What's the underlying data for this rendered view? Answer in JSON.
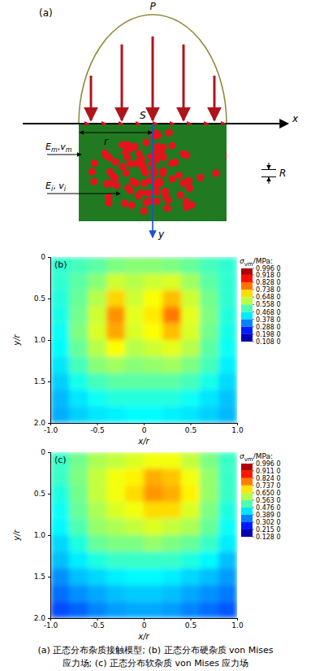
{
  "diagram": {
    "label": "(a)",
    "load": "P",
    "x_axis": "x",
    "y_axis": "y",
    "center": "S",
    "radius": "r",
    "inclusion_radius": "R",
    "matrix_label": {
      "base": [
        "E",
        "v"
      ],
      "sub": [
        "m",
        "m"
      ],
      "sep": ","
    },
    "inclusion_label": {
      "base": [
        "E",
        "v"
      ],
      "sub": [
        "i",
        "i"
      ],
      "sep": ", "
    }
  },
  "chart_data": [
    {
      "type": "heatmap",
      "title": "(b)",
      "xlabel": "x/r",
      "ylabel": "y/r",
      "x": [
        -0.9,
        -0.7,
        -0.5,
        -0.3,
        -0.1,
        0.1,
        0.3,
        0.5,
        0.7,
        0.9
      ],
      "y": [
        0.1,
        0.3,
        0.5,
        0.7,
        0.9,
        1.1,
        1.3,
        1.5,
        1.7,
        1.9
      ],
      "values": [
        [
          0.48,
          0.5,
          0.52,
          0.55,
          0.56,
          0.56,
          0.55,
          0.53,
          0.5,
          0.48
        ],
        [
          0.48,
          0.52,
          0.56,
          0.62,
          0.6,
          0.62,
          0.63,
          0.58,
          0.52,
          0.48
        ],
        [
          0.47,
          0.53,
          0.6,
          0.7,
          0.62,
          0.66,
          0.72,
          0.62,
          0.54,
          0.48
        ],
        [
          0.46,
          0.54,
          0.62,
          0.76,
          0.64,
          0.68,
          0.78,
          0.64,
          0.55,
          0.47
        ],
        [
          0.45,
          0.55,
          0.63,
          0.74,
          0.63,
          0.66,
          0.72,
          0.63,
          0.54,
          0.46
        ],
        [
          0.44,
          0.53,
          0.6,
          0.66,
          0.6,
          0.62,
          0.64,
          0.6,
          0.52,
          0.45
        ],
        [
          0.42,
          0.5,
          0.56,
          0.58,
          0.56,
          0.57,
          0.58,
          0.55,
          0.5,
          0.43
        ],
        [
          0.4,
          0.46,
          0.5,
          0.52,
          0.52,
          0.52,
          0.52,
          0.5,
          0.46,
          0.41
        ],
        [
          0.38,
          0.42,
          0.45,
          0.47,
          0.47,
          0.47,
          0.47,
          0.45,
          0.42,
          0.39
        ],
        [
          0.37,
          0.4,
          0.42,
          0.43,
          0.44,
          0.44,
          0.43,
          0.42,
          0.4,
          0.38
        ]
      ],
      "xlim": [
        -1,
        1
      ],
      "ylim": [
        0,
        2
      ],
      "xticks": [
        {
          "value": -1,
          "label": "-1.0"
        },
        -0.5,
        0,
        0.5,
        {
          "value": 1,
          "label": "1.0"
        }
      ],
      "yticks": [
        0,
        0.5,
        {
          "value": 1,
          "label": "1.0"
        },
        1.5,
        {
          "value": 2,
          "label": "2.0"
        }
      ],
      "colorbar": {
        "title": {
          "symbol": "σ",
          "sub": "vm",
          "unit": "/MPa:"
        },
        "range": [
          0.108,
          0.996
        ],
        "ticks": [
          {
            "value": 0.996,
            "label": "0.996 0"
          },
          {
            "value": 0.918,
            "label": "0.918 0"
          },
          {
            "value": 0.828,
            "label": "0.828 0"
          },
          {
            "value": 0.738,
            "label": "0.738 0"
          },
          {
            "value": 0.648,
            "label": "0.648 0"
          },
          {
            "value": 0.558,
            "label": "0.558 0"
          },
          {
            "value": 0.468,
            "label": "0.468 0"
          },
          {
            "value": 0.378,
            "label": "0.378 0"
          },
          {
            "value": 0.288,
            "label": "0.288 0"
          },
          {
            "value": 0.198,
            "label": "0.198 0"
          },
          {
            "value": 0.108,
            "label": "0.108 0"
          }
        ]
      }
    },
    {
      "type": "heatmap",
      "title": "(c)",
      "xlabel": "x/r",
      "ylabel": "y/r",
      "x": [
        -0.9,
        -0.7,
        -0.5,
        -0.3,
        -0.1,
        0.1,
        0.3,
        0.5,
        0.7,
        0.9
      ],
      "y": [
        0.1,
        0.3,
        0.5,
        0.7,
        0.9,
        1.1,
        1.3,
        1.5,
        1.7,
        1.9
      ],
      "values": [
        [
          0.5,
          0.55,
          0.6,
          0.62,
          0.64,
          0.66,
          0.66,
          0.62,
          0.56,
          0.5
        ],
        [
          0.5,
          0.56,
          0.62,
          0.66,
          0.68,
          0.74,
          0.72,
          0.66,
          0.58,
          0.5
        ],
        [
          0.48,
          0.55,
          0.62,
          0.66,
          0.7,
          0.76,
          0.74,
          0.68,
          0.58,
          0.5
        ],
        [
          0.46,
          0.54,
          0.6,
          0.64,
          0.66,
          0.7,
          0.7,
          0.64,
          0.56,
          0.48
        ],
        [
          0.45,
          0.52,
          0.58,
          0.6,
          0.62,
          0.64,
          0.62,
          0.6,
          0.54,
          0.46
        ],
        [
          0.42,
          0.48,
          0.54,
          0.56,
          0.56,
          0.58,
          0.56,
          0.54,
          0.5,
          0.44
        ],
        [
          0.4,
          0.44,
          0.48,
          0.5,
          0.5,
          0.5,
          0.5,
          0.48,
          0.45,
          0.4
        ],
        [
          0.36,
          0.4,
          0.42,
          0.44,
          0.45,
          0.45,
          0.44,
          0.42,
          0.4,
          0.37
        ],
        [
          0.33,
          0.36,
          0.38,
          0.4,
          0.41,
          0.41,
          0.4,
          0.38,
          0.36,
          0.34
        ],
        [
          0.3,
          0.32,
          0.35,
          0.37,
          0.38,
          0.38,
          0.37,
          0.35,
          0.33,
          0.31
        ]
      ],
      "xlim": [
        -1,
        1
      ],
      "ylim": [
        0,
        2
      ],
      "xticks": [
        {
          "value": -1,
          "label": "-1.0"
        },
        -0.5,
        0,
        0.5,
        {
          "value": 1,
          "label": "1.0"
        }
      ],
      "yticks": [
        0,
        0.5,
        {
          "value": 1,
          "label": "1.0"
        },
        1.5,
        {
          "value": 2,
          "label": "2.0"
        }
      ],
      "colorbar": {
        "title": {
          "symbol": "σ",
          "sub": "vm",
          "unit": "/MPa:"
        },
        "range": [
          0.128,
          0.996
        ],
        "ticks": [
          {
            "value": 0.996,
            "label": "0.996 0"
          },
          {
            "value": 0.911,
            "label": "0.911 0"
          },
          {
            "value": 0.824,
            "label": "0.824 0"
          },
          {
            "value": 0.737,
            "label": "0.737 0"
          },
          {
            "value": 0.65,
            "label": "0.650 0"
          },
          {
            "value": 0.563,
            "label": "0.563 0"
          },
          {
            "value": 0.476,
            "label": "0.476 0"
          },
          {
            "value": 0.389,
            "label": "0.389 0"
          },
          {
            "value": 0.302,
            "label": "0.302 0"
          },
          {
            "value": 0.215,
            "label": "0.215 0"
          },
          {
            "value": 0.128,
            "label": "0.128 0"
          }
        ]
      }
    }
  ],
  "caption": [
    "(a) 正态分布杂质接触模型; (b) 正态分布硬杂质 von Mises",
    "应力场; (c) 正态分布软杂质 von Mises 应力场"
  ]
}
